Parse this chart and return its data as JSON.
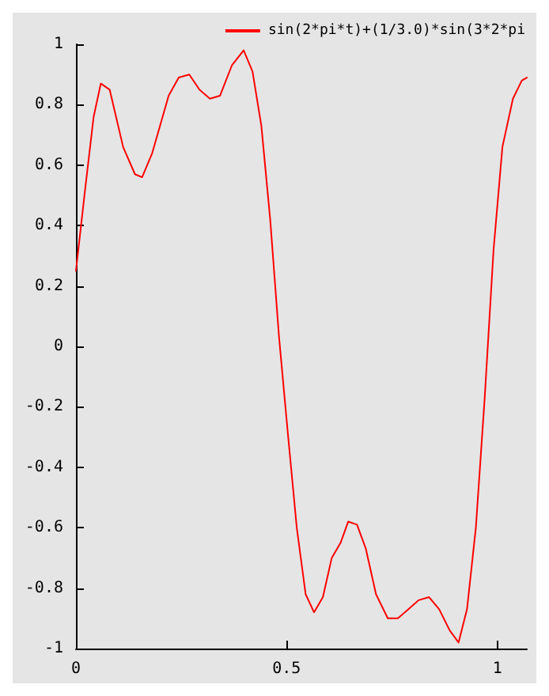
{
  "chart_data": {
    "type": "line",
    "x": [
      0,
      0.021,
      0.042,
      0.059,
      0.08,
      0.112,
      0.14,
      0.157,
      0.181,
      0.22,
      0.244,
      0.269,
      0.293,
      0.318,
      0.342,
      0.37,
      0.398,
      0.419,
      0.44,
      0.461,
      0.482,
      0.503,
      0.524,
      0.545,
      0.565,
      0.586,
      0.607,
      0.628,
      0.646,
      0.667,
      0.688,
      0.712,
      0.74,
      0.764,
      0.789,
      0.813,
      0.838,
      0.862,
      0.887,
      0.908,
      0.928,
      0.949,
      0.97,
      0.991,
      1.012,
      1.037,
      1.058,
      1.07
    ],
    "series": [
      {
        "name": "sin(2*pi*t)+(1/3.0)*sin(3*2*pi",
        "color": "#ff0000",
        "values": [
          0.25,
          0.51,
          0.76,
          0.87,
          0.85,
          0.66,
          0.57,
          0.56,
          0.64,
          0.83,
          0.89,
          0.9,
          0.85,
          0.82,
          0.83,
          0.93,
          0.98,
          0.91,
          0.73,
          0.42,
          0.03,
          -0.29,
          -0.6,
          -0.82,
          -0.88,
          -0.83,
          -0.7,
          -0.65,
          -0.58,
          -0.59,
          -0.67,
          -0.82,
          -0.9,
          -0.9,
          -0.87,
          -0.84,
          -0.83,
          -0.87,
          -0.94,
          -0.98,
          -0.87,
          -0.6,
          -0.17,
          0.32,
          0.66,
          0.82,
          0.88,
          0.89
        ]
      }
    ],
    "xlim": [
      0,
      1.07
    ],
    "xticks": [
      0,
      0.5,
      1
    ],
    "ylim": [
      -1,
      1
    ],
    "yticks": [
      -1,
      -0.8,
      -0.6,
      -0.4,
      -0.2,
      0,
      0.2,
      0.4,
      0.6,
      0.8,
      1
    ],
    "grid": false,
    "legend": "top right",
    "marker": "none",
    "line_style": "solid"
  }
}
